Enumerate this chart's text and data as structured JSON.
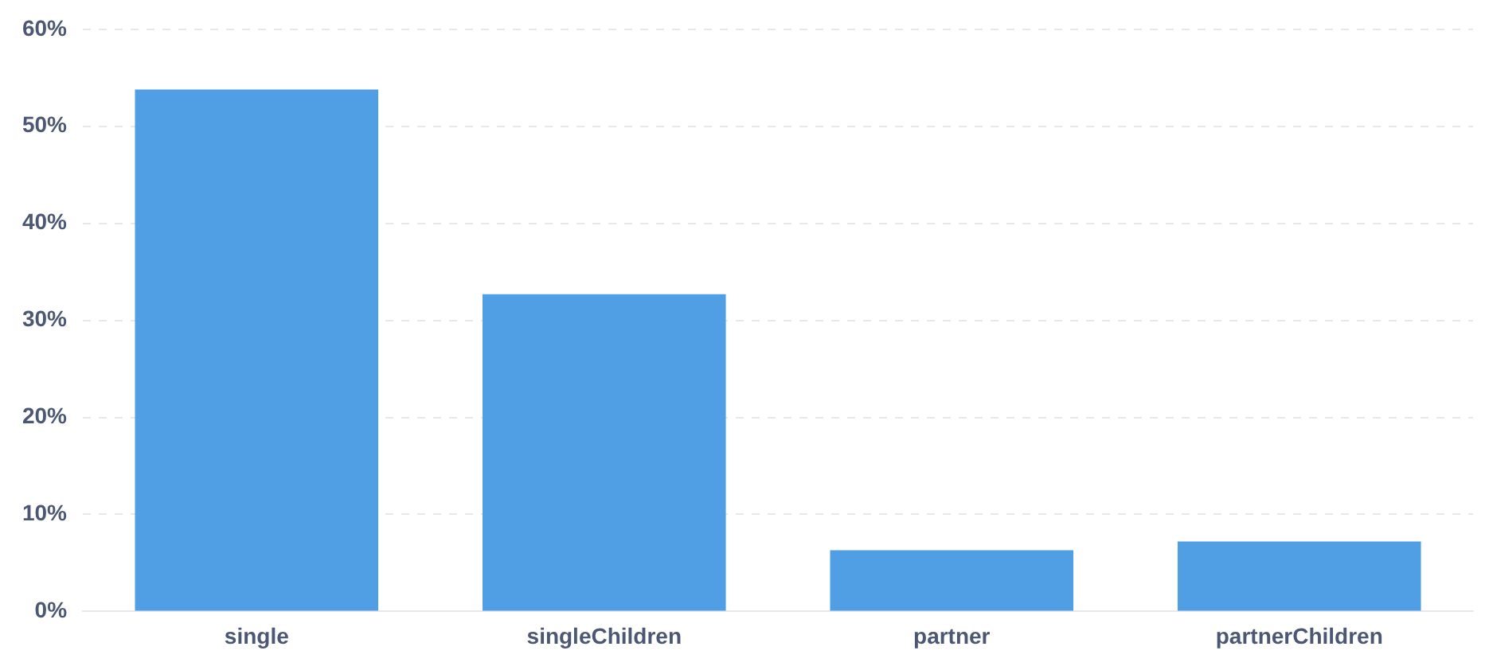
{
  "chart_data": {
    "type": "bar",
    "categories": [
      "single",
      "singleChildren",
      "partner",
      "partnerChildren"
    ],
    "values": [
      53.8,
      32.7,
      6.3,
      7.2
    ],
    "color": "#509ee3",
    "ylim": [
      0,
      60
    ],
    "yticks": [
      {
        "value": 0,
        "label": "0%"
      },
      {
        "value": 10,
        "label": "10%"
      },
      {
        "value": 20,
        "label": "20%"
      },
      {
        "value": 30,
        "label": "30%"
      },
      {
        "value": 40,
        "label": "40%"
      },
      {
        "value": 50,
        "label": "50%"
      },
      {
        "value": 60,
        "label": "60%"
      }
    ],
    "grid": "y",
    "legend": false
  }
}
